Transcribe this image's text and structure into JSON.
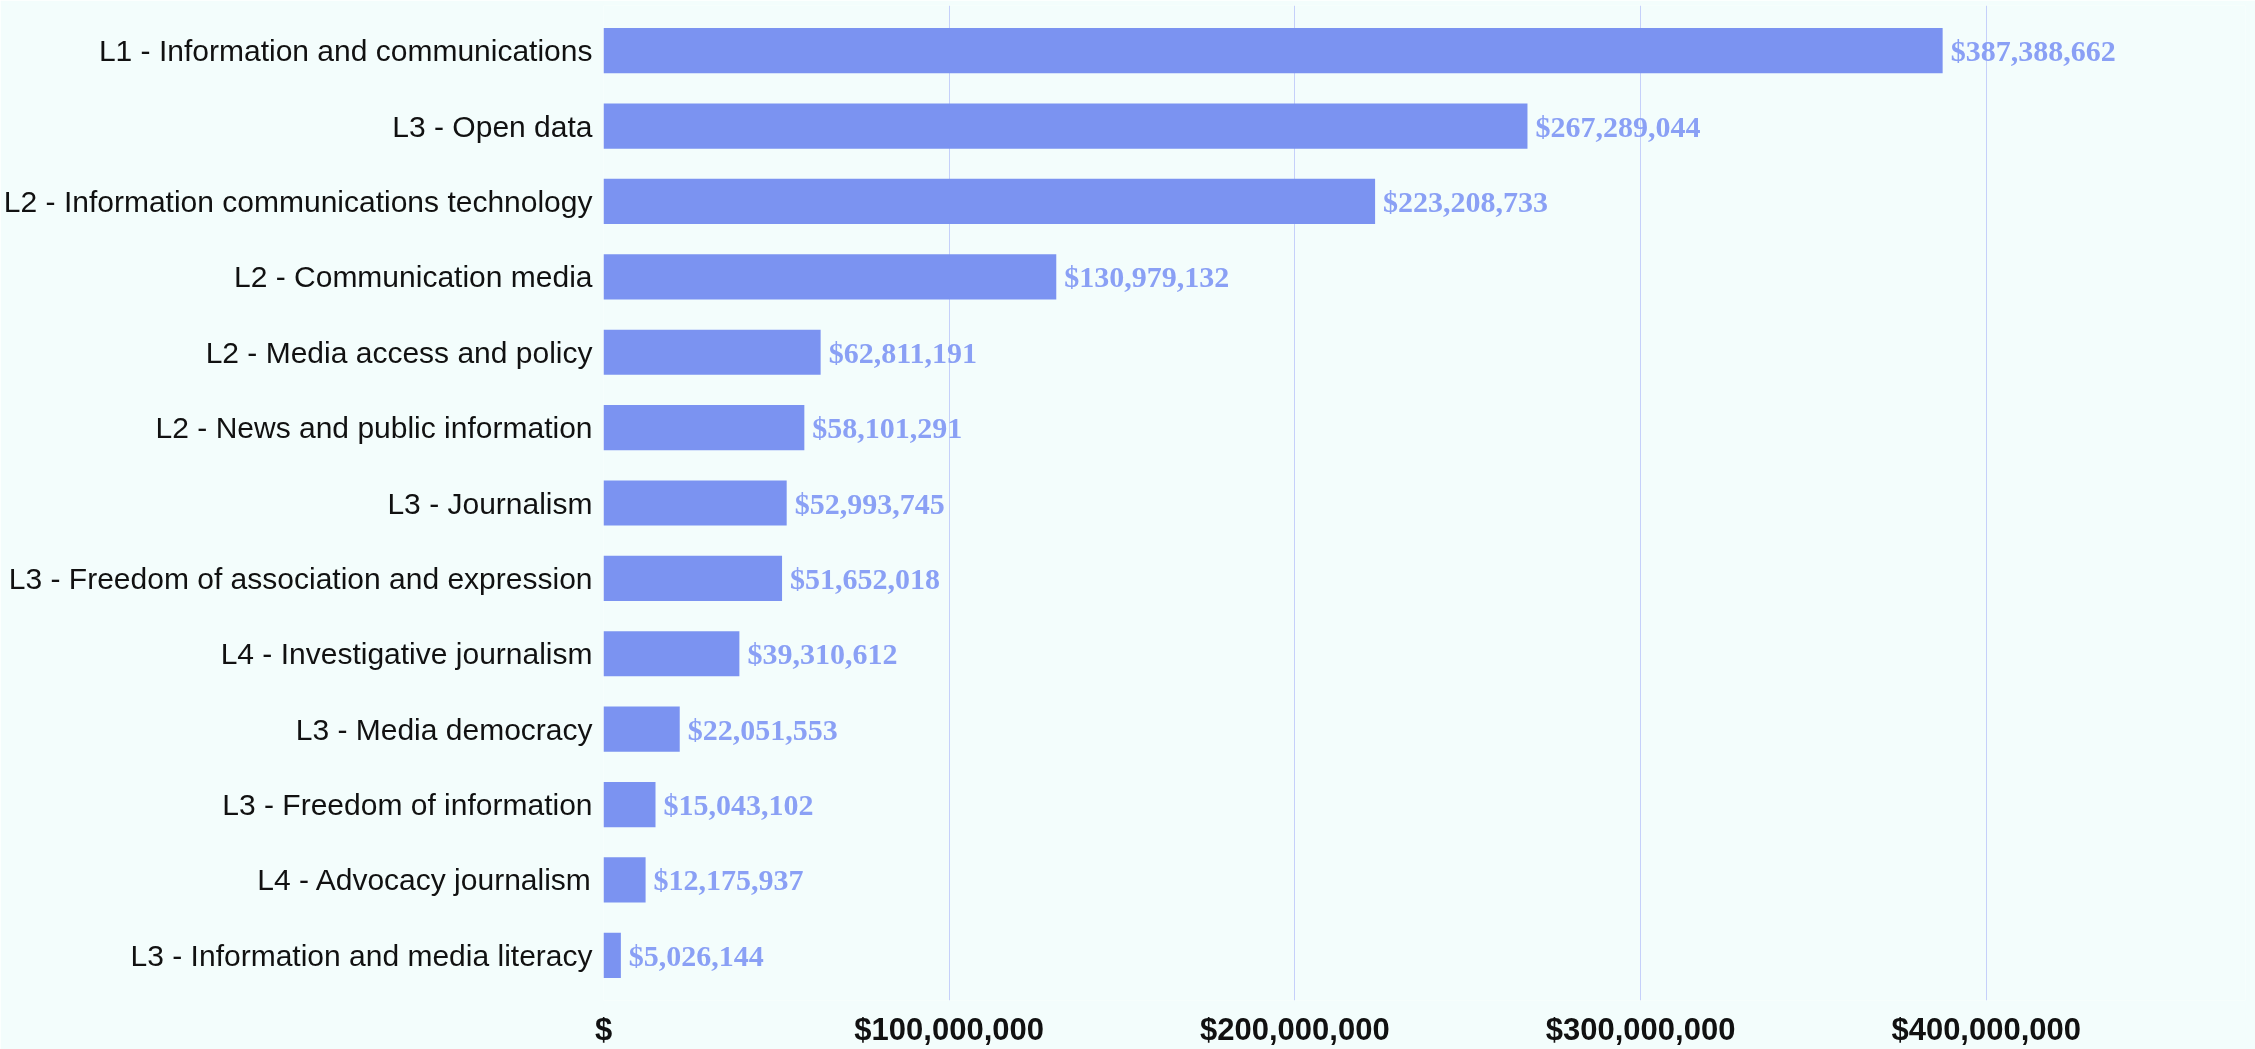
{
  "chart_data": {
    "type": "bar",
    "orientation": "horizontal",
    "categories": [
      "L1 - Information and communications",
      "L3 - Open data",
      "L2 - Information communications technology",
      "L2 - Communication media",
      "L2 - Media access and policy",
      "L2 - News and public information",
      "L3 - Journalism",
      "L3 - Freedom of association and expression",
      "L4 - Investigative journalism",
      "L3 - Media democracy",
      "L3 - Freedom of information",
      "L4 - Advocacy journalism",
      "L3 - Information and media literacy"
    ],
    "values": [
      387388662,
      267289044,
      223208733,
      130979132,
      62811191,
      58101291,
      52993745,
      51652018,
      39310612,
      22051553,
      15043102,
      12175937,
      5026144
    ],
    "value_labels": [
      "$387,388,662",
      "$267,289,044",
      "$223,208,733",
      "$130,979,132",
      "$62,811,191",
      "$58,101,291",
      "$52,993,745",
      "$51,652,018",
      "$39,310,612",
      "$22,051,553",
      "$15,043,102",
      "$12,175,937",
      "$5,026,144"
    ],
    "color": "#7b93f1",
    "xlim": [
      0,
      475000000
    ],
    "xticks": [
      {
        "value": 0,
        "label": "$"
      },
      {
        "value": 100000000,
        "label": "$100,000,000"
      },
      {
        "value": 200000000,
        "label": "$200,000,000"
      },
      {
        "value": 300000000,
        "label": "$300,000,000"
      },
      {
        "value": 400000000,
        "label": "$400,000,000"
      }
    ],
    "grid": "x"
  }
}
